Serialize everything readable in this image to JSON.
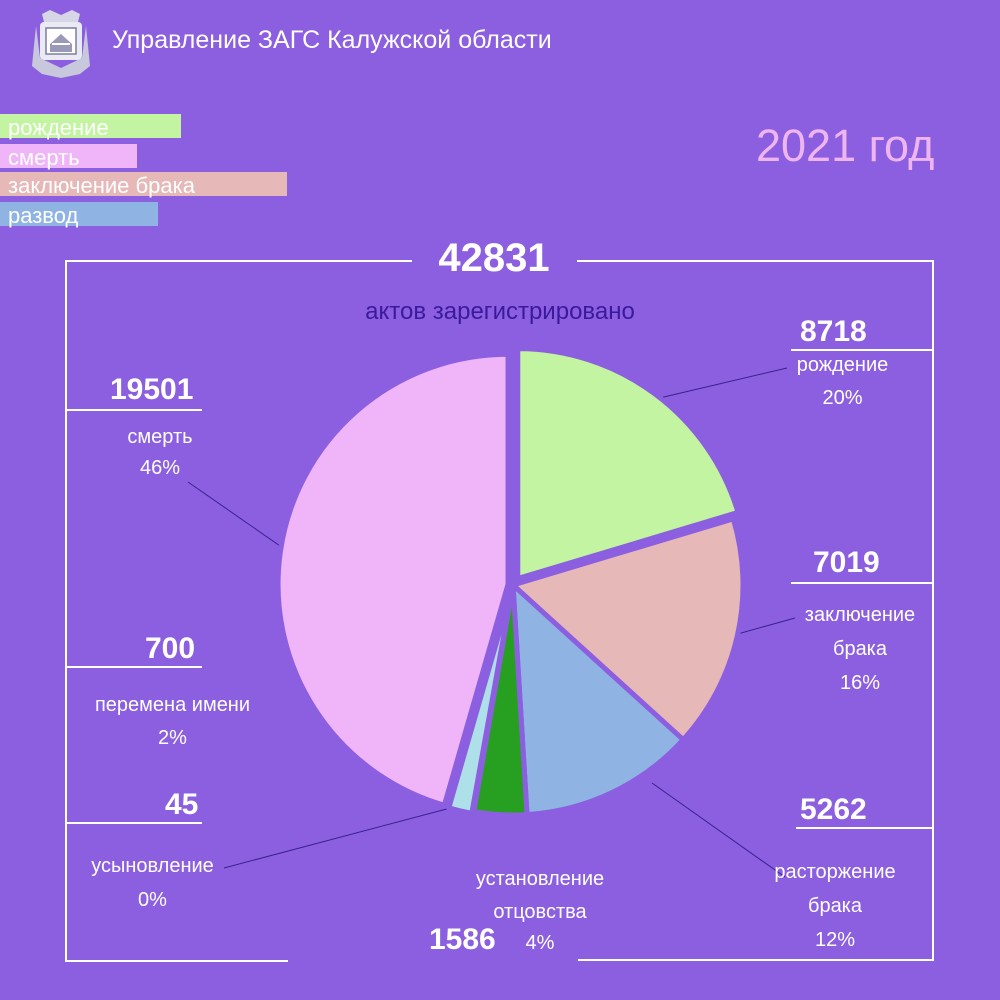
{
  "header": {
    "title": "Управление ЗАГС Калужской области",
    "emblem": "kaluga-region-coat-of-arms"
  },
  "year": "2021 год",
  "legend": [
    {
      "label": "рождение",
      "color": "#c2f4a2"
    },
    {
      "label": "смерть",
      "color": "#efb5f8"
    },
    {
      "label": "заключение брака",
      "color": "#e6b8b8"
    },
    {
      "label": "развод",
      "color": "#8fb4e3"
    }
  ],
  "total": {
    "value": "42831",
    "caption": "актов зарегистрировано"
  },
  "annotations": {
    "birth": {
      "value": "8718",
      "line1": "рождение",
      "line2": "",
      "pct": "20%"
    },
    "marriage": {
      "value": "7019",
      "line1": "заключение",
      "line2": "брака",
      "pct": "16%"
    },
    "divorce": {
      "value": "5262",
      "line1": "расторжение",
      "line2": "брака",
      "pct": "12%"
    },
    "paternity": {
      "value": "1586",
      "line1": "установление",
      "line2": "отцовства",
      "pct": "4%"
    },
    "adoption": {
      "value": "45",
      "line1": "усыновление",
      "pct": "0%"
    },
    "name_change": {
      "value": "700",
      "line1": "перемена имени",
      "pct": "2%"
    },
    "death": {
      "value": "19501",
      "line1": "смерть",
      "pct": "46%"
    }
  },
  "chart_data": {
    "type": "pie",
    "total": 42831,
    "categories": [
      "рождение",
      "заключение брака",
      "расторжение брака",
      "установление отцовства",
      "усыновление",
      "перемена имени",
      "смерть"
    ],
    "values": [
      8718,
      7019,
      5262,
      1586,
      45,
      700,
      19501
    ],
    "percents": [
      20,
      16,
      12,
      4,
      0,
      2,
      46
    ],
    "colors": [
      "#c2f4a2",
      "#e6b8b8",
      "#8fb4e3",
      "#27a021",
      "#ffffff",
      "#aee0ea",
      "#efb5f8"
    ],
    "separator_color": "#8c5fe0",
    "start_angle": 0,
    "direction": "clockwise"
  }
}
